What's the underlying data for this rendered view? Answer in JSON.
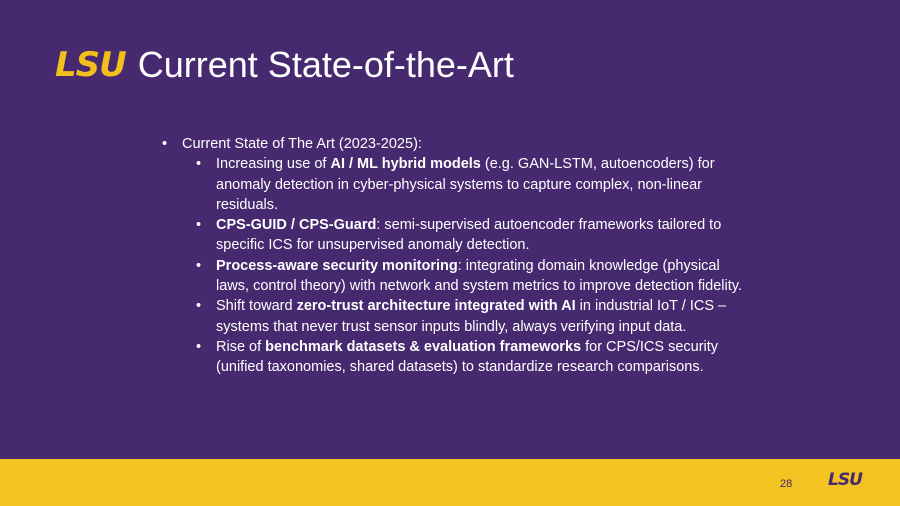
{
  "header": {
    "logo": "LSU",
    "title": "Current State-of-the-Art"
  },
  "content": {
    "heading": "Current State of The Art (2023-2025):",
    "bullets": [
      {
        "pre": "Increasing use of ",
        "bold": "AI / ML hybrid models",
        "post": " (e.g. GAN-LSTM, autoencoders) for anomaly detection in cyber-physical systems to capture complex, non-linear residuals."
      },
      {
        "pre": "",
        "bold": "CPS-GUID / CPS-Guard",
        "post": ": semi-supervised autoencoder frameworks tailored to specific ICS for unsupervised anomaly detection."
      },
      {
        "pre": "",
        "bold": "Process-aware security monitoring",
        "post": ": integrating domain knowledge (physical laws, control theory) with network and system metrics to improve detection fidelity."
      },
      {
        "pre": "Shift toward ",
        "bold": "zero-trust architecture integrated with AI",
        "post": " in industrial IoT / ICS – systems that never trust sensor inputs blindly, always verifying input data."
      },
      {
        "pre": "Rise of ",
        "bold": "benchmark datasets & evaluation frameworks",
        "post": " for CPS/ICS security (unified taxonomies, shared datasets) to standardize research comparisons."
      }
    ]
  },
  "footer": {
    "page_number": "28",
    "logo": "LSU"
  },
  "colors": {
    "purple": "#46296f",
    "gold": "#f2c321",
    "text": "#ffffff"
  }
}
